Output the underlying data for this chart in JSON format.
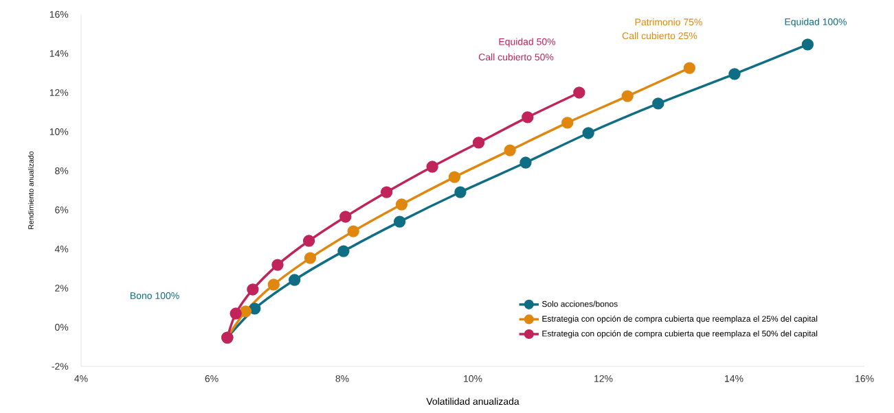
{
  "chart_data": {
    "type": "line",
    "xlabel": "Volatilidad anualizada",
    "ylabel": "Rendimiento anualizado",
    "xlim": [
      4,
      16
    ],
    "ylim": [
      -2,
      16
    ],
    "xticks": [
      {
        "value": 4,
        "label": "4%"
      },
      {
        "value": 6,
        "label": "6%"
      },
      {
        "value": 8,
        "label": "8%"
      },
      {
        "value": 10,
        "label": "10%"
      },
      {
        "value": 12,
        "label": "12%"
      },
      {
        "value": 14,
        "label": "14%"
      },
      {
        "value": 16,
        "label": "16%"
      }
    ],
    "yticks": [
      {
        "value": -2,
        "label": "-2%"
      },
      {
        "value": 0,
        "label": "0%"
      },
      {
        "value": 2,
        "label": "2%"
      },
      {
        "value": 4,
        "label": "4%"
      },
      {
        "value": 6,
        "label": "6%"
      },
      {
        "value": 8,
        "label": "8%"
      },
      {
        "value": 10,
        "label": "10%"
      },
      {
        "value": 12,
        "label": "12%"
      },
      {
        "value": 14,
        "label": "14%"
      },
      {
        "value": 16,
        "label": "16%"
      }
    ],
    "marker": "circle",
    "legend": "bottom right",
    "grid": false,
    "annotations": [
      "Bono 100%",
      "Equidad 50%",
      "Call cubierto 50%",
      "Patrimonio 75%",
      "Call cubierto 25%",
      "Equidad 100%"
    ],
    "series": [
      {
        "name": "Solo acciones/bonos",
        "color": "#0f6e84",
        "x": [
          6.24,
          6.66,
          7.27,
          8.02,
          8.88,
          9.81,
          10.81,
          11.77,
          12.84,
          14.01,
          15.13
        ],
        "values": [
          -0.53,
          0.95,
          2.42,
          3.89,
          5.4,
          6.91,
          8.42,
          9.93,
          11.44,
          12.95,
          14.46
        ]
      },
      {
        "name": "Estrategia con opción de compra cubierta que reemplaza el 25% del capital",
        "color": "#e0870f",
        "x": [
          6.24,
          6.52,
          6.95,
          7.51,
          8.17,
          8.91,
          9.72,
          10.57,
          11.45,
          12.37,
          13.32
        ],
        "values": [
          -0.53,
          0.81,
          2.18,
          3.54,
          4.91,
          6.28,
          7.68,
          9.05,
          10.46,
          11.82,
          13.26
        ]
      },
      {
        "name": "Estrategia con opción de compra cubierta que reemplaza el 50% del capital",
        "color": "#c0245a",
        "x": [
          6.24,
          6.37,
          6.63,
          7.01,
          7.49,
          8.05,
          8.68,
          9.38,
          10.09,
          10.84,
          11.63
        ],
        "values": [
          -0.53,
          0.7,
          1.93,
          3.19,
          4.42,
          5.65,
          6.91,
          8.21,
          9.44,
          10.74,
          12.0
        ]
      }
    ]
  }
}
